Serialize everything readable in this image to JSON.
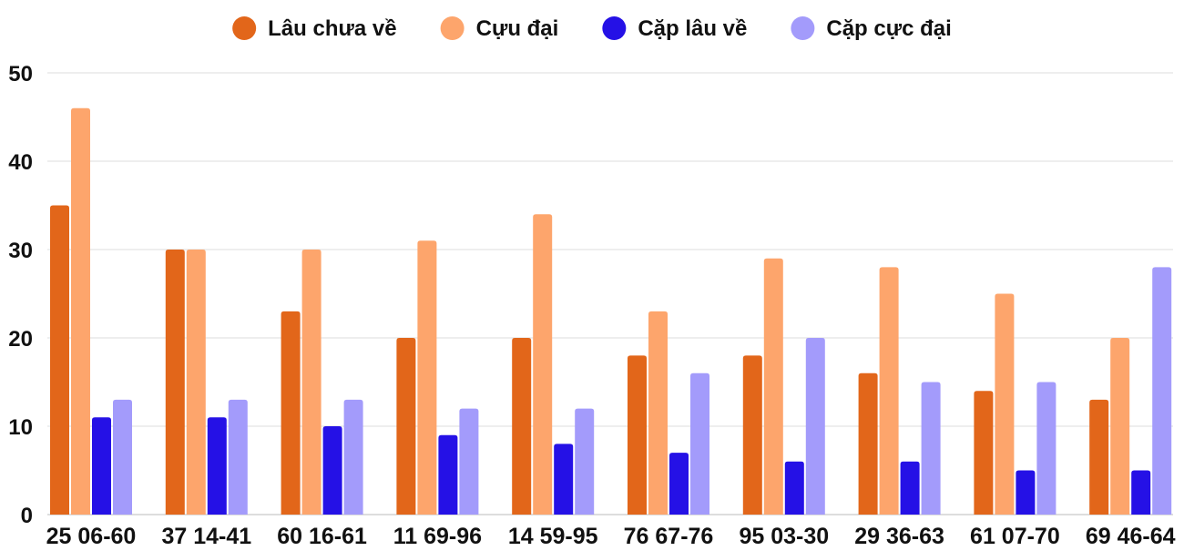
{
  "chart_data": {
    "type": "bar",
    "categories": [
      "25 06-60",
      "37 14-41",
      "60 16-61",
      "11 69-96",
      "14 59-95",
      "76 67-76",
      "95 03-30",
      "29 36-63",
      "61 07-70",
      "69 46-64"
    ],
    "series": [
      {
        "name": "Lâu chưa về",
        "color": "#e2661a",
        "values": [
          35,
          30,
          23,
          20,
          20,
          18,
          18,
          16,
          14,
          13
        ]
      },
      {
        "name": "Cựu đại",
        "color": "#fda56c",
        "values": [
          46,
          30,
          30,
          31,
          34,
          23,
          29,
          28,
          25,
          20
        ]
      },
      {
        "name": "Cặp lâu về",
        "color": "#2511e6",
        "values": [
          11,
          11,
          10,
          9,
          8,
          7,
          6,
          6,
          5,
          5
        ]
      },
      {
        "name": "Cặp cực đại",
        "color": "#a39bfb",
        "values": [
          13,
          13,
          13,
          12,
          12,
          16,
          20,
          15,
          15,
          28
        ]
      }
    ],
    "yticks": [
      "0",
      "10",
      "20",
      "30",
      "40",
      "50"
    ],
    "ylim": [
      0,
      50
    ],
    "grid": true,
    "legend_position": "top-center"
  }
}
